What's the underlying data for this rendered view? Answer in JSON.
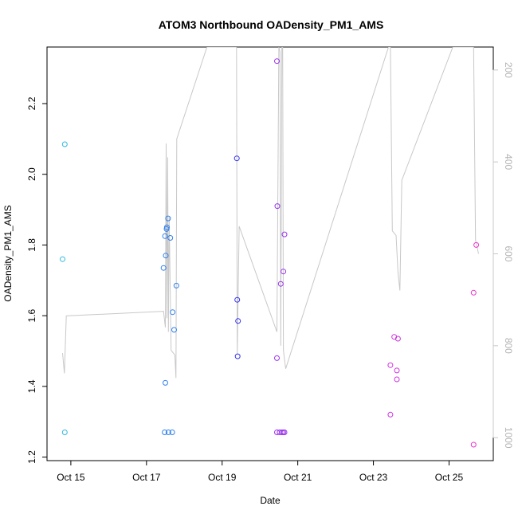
{
  "chart_data": {
    "type": "scatter",
    "title": "ATOM3 Northbound OADensity_PM1_AMS",
    "xlabel": "Date",
    "ylabel": "OADensity_PM1_AMS",
    "x_unit": "days (October)",
    "xlim": [
      14.37,
      26.17
    ],
    "ylim": [
      1.19,
      2.36
    ],
    "x_ticks": [
      {
        "value": 15,
        "label": "Oct 15"
      },
      {
        "value": 17,
        "label": "Oct 17"
      },
      {
        "value": 19,
        "label": "Oct 19"
      },
      {
        "value": 21,
        "label": "Oct 21"
      },
      {
        "value": 23,
        "label": "Oct 23"
      },
      {
        "value": 25,
        "label": "Oct 25"
      }
    ],
    "y_ticks": [
      {
        "value": 1.2,
        "label": "1.2"
      },
      {
        "value": 1.4,
        "label": "1.4"
      },
      {
        "value": 1.6,
        "label": "1.6"
      },
      {
        "value": 1.8,
        "label": "1.8"
      },
      {
        "value": 2.0,
        "label": "2.0"
      },
      {
        "value": 2.2,
        "label": "2.2"
      }
    ],
    "secondary_axis": {
      "reversed": true,
      "lim": [
        150,
        1050
      ],
      "ticks": [
        {
          "value": 200,
          "label": "200"
        },
        {
          "value": 400,
          "label": "400"
        },
        {
          "value": 600,
          "label": "600"
        },
        {
          "value": 800,
          "label": "800"
        },
        {
          "value": 1000,
          "label": "1000"
        }
      ],
      "color": "#c8c8c8",
      "line": [
        [
          14.78,
          816
        ],
        [
          14.83,
          860
        ],
        [
          14.88,
          735
        ],
        [
          17.45,
          725
        ],
        [
          17.5,
          760
        ],
        [
          17.52,
          360
        ],
        [
          17.54,
          740
        ],
        [
          17.56,
          390
        ],
        [
          17.58,
          770
        ],
        [
          17.6,
          520
        ],
        [
          17.65,
          810
        ],
        [
          17.75,
          820
        ],
        [
          17.78,
          870
        ],
        [
          17.8,
          350
        ],
        [
          18.6,
          150
        ],
        [
          19.38,
          150
        ],
        [
          19.4,
          820
        ],
        [
          19.45,
          540
        ],
        [
          20.45,
          770
        ],
        [
          20.5,
          150
        ],
        [
          20.53,
          160
        ],
        [
          20.55,
          800
        ],
        [
          20.58,
          150
        ],
        [
          20.6,
          150
        ],
        [
          20.62,
          810
        ],
        [
          20.68,
          850
        ],
        [
          23.4,
          150
        ],
        [
          23.45,
          150
        ],
        [
          23.5,
          550
        ],
        [
          23.6,
          560
        ],
        [
          23.65,
          640
        ],
        [
          23.7,
          680
        ],
        [
          23.75,
          440
        ],
        [
          25.1,
          150
        ],
        [
          25.55,
          150
        ],
        [
          25.65,
          150
        ],
        [
          25.7,
          570
        ],
        [
          25.78,
          600
        ]
      ]
    },
    "series": [
      {
        "points": [
          {
            "x": 14.78,
            "y": 1.76,
            "color": "#33b8e0"
          },
          {
            "x": 14.84,
            "y": 2.085,
            "color": "#33b8e0"
          },
          {
            "x": 14.84,
            "y": 1.27,
            "color": "#33b8e0"
          },
          {
            "x": 17.45,
            "y": 1.735,
            "color": "#2f80f0"
          },
          {
            "x": 17.49,
            "y": 1.825,
            "color": "#2f80f0"
          },
          {
            "x": 17.51,
            "y": 1.77,
            "color": "#2f80f0"
          },
          {
            "x": 17.53,
            "y": 1.845,
            "color": "#2f80f0"
          },
          {
            "x": 17.54,
            "y": 1.85,
            "color": "#2f80f0"
          },
          {
            "x": 17.57,
            "y": 1.875,
            "color": "#2f80f0"
          },
          {
            "x": 17.63,
            "y": 1.82,
            "color": "#2f80f0"
          },
          {
            "x": 17.69,
            "y": 1.61,
            "color": "#2f80f0"
          },
          {
            "x": 17.73,
            "y": 1.56,
            "color": "#2f80f0"
          },
          {
            "x": 17.79,
            "y": 1.685,
            "color": "#2f80f0"
          },
          {
            "x": 17.5,
            "y": 1.41,
            "color": "#2f80f0"
          },
          {
            "x": 17.48,
            "y": 1.27,
            "color": "#2f80f0"
          },
          {
            "x": 17.58,
            "y": 1.27,
            "color": "#2f80f0"
          },
          {
            "x": 17.68,
            "y": 1.27,
            "color": "#2f80f0"
          },
          {
            "x": 19.39,
            "y": 2.045,
            "color": "#3333ee"
          },
          {
            "x": 19.4,
            "y": 1.645,
            "color": "#3333ee"
          },
          {
            "x": 19.42,
            "y": 1.585,
            "color": "#3333ee"
          },
          {
            "x": 19.41,
            "y": 1.485,
            "color": "#3333ee"
          },
          {
            "x": 20.45,
            "y": 2.32,
            "color": "#9a33ee"
          },
          {
            "x": 20.46,
            "y": 1.91,
            "color": "#9a33ee"
          },
          {
            "x": 20.55,
            "y": 1.69,
            "color": "#9a33ee"
          },
          {
            "x": 20.62,
            "y": 1.725,
            "color": "#9a33ee"
          },
          {
            "x": 20.65,
            "y": 1.83,
            "color": "#9a33ee"
          },
          {
            "x": 20.45,
            "y": 1.48,
            "color": "#9a33ee"
          },
          {
            "x": 20.45,
            "y": 1.27,
            "color": "#9a33ee"
          },
          {
            "x": 20.52,
            "y": 1.27,
            "color": "#9a33ee"
          },
          {
            "x": 20.58,
            "y": 1.27,
            "color": "#9a33ee"
          },
          {
            "x": 20.62,
            "y": 1.27,
            "color": "#9a33ee"
          },
          {
            "x": 20.65,
            "y": 1.27,
            "color": "#9a33ee"
          },
          {
            "x": 23.45,
            "y": 1.46,
            "color": "#cc33dd"
          },
          {
            "x": 23.45,
            "y": 1.32,
            "color": "#cc33dd"
          },
          {
            "x": 23.55,
            "y": 1.54,
            "color": "#cc33dd"
          },
          {
            "x": 23.65,
            "y": 1.535,
            "color": "#cc33dd"
          },
          {
            "x": 23.62,
            "y": 1.445,
            "color": "#cc33dd"
          },
          {
            "x": 23.62,
            "y": 1.42,
            "color": "#cc33dd"
          },
          {
            "x": 25.65,
            "y": 1.665,
            "color": "#ee33cc"
          },
          {
            "x": 25.72,
            "y": 1.8,
            "color": "#ee33cc"
          },
          {
            "x": 25.65,
            "y": 1.235,
            "color": "#ee33cc"
          }
        ]
      }
    ]
  }
}
